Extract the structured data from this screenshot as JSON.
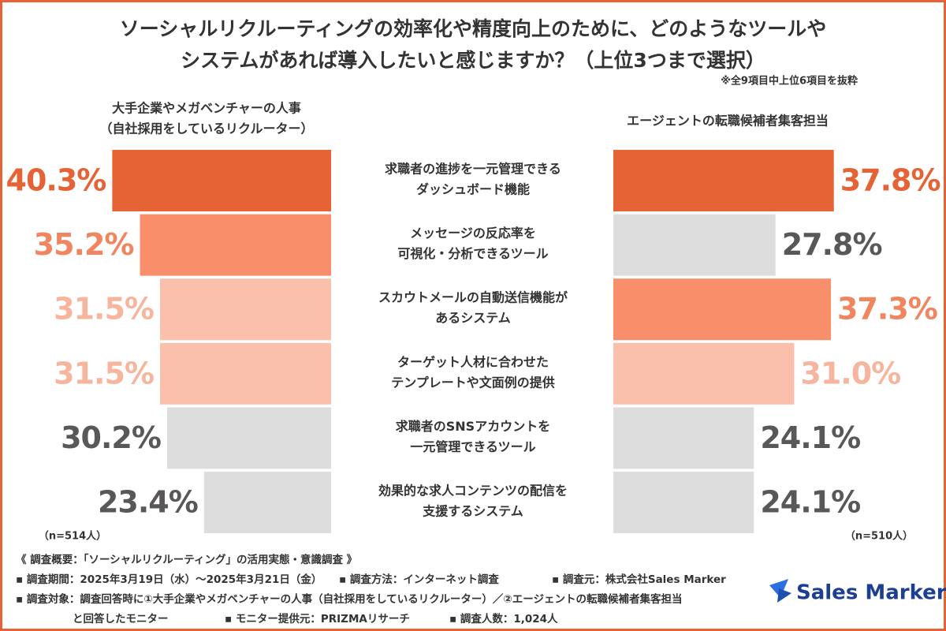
{
  "chart_data": {
    "type": "butterfly",
    "title": [
      "ソーシャルリクルーティングの効率化や精度向上のために、どのようなツールや",
      "システムがあれば導入したいと感じますか？（上位3つまで選択）"
    ],
    "note": "※全9項目中上位6項目を抜粋",
    "categories": [
      [
        "求職者の進捗を一元管理できる",
        "ダッシュボード機能"
      ],
      [
        "メッセージの反応率を",
        "可視化・分析できるツール"
      ],
      [
        "スカウトメールの自動送信機能が",
        "あるシステム"
      ],
      [
        "ターゲット人材に合わせた",
        "テンプレートや文面例の提供"
      ],
      [
        "求職者のSNSアカウントを",
        "一元管理できるツール"
      ],
      [
        "効果的な求人コンテンツの配信を",
        "支援するシステム"
      ]
    ],
    "xlim": [
      0,
      45
    ],
    "series": [
      {
        "name": [
          "大手企業やメガベンチャーの人事",
          "（自社採用をしているリクルーター）"
        ],
        "n_label": "（n=514人）",
        "values": [
          40.3,
          35.2,
          31.5,
          31.5,
          30.2,
          23.4
        ],
        "value_labels": [
          "40.3%",
          "35.2%",
          "31.5%",
          "31.5%",
          "30.2%",
          "23.4%"
        ],
        "colors": [
          "#e66335",
          "#f88e6a",
          "#fbc0ab",
          "#fbc0ab",
          "#dedddd",
          "#dedddd"
        ],
        "label_colors": [
          "#e66335",
          "#f08560",
          "#f7b59d",
          "#f7b59d",
          "#595757",
          "#595757"
        ]
      },
      {
        "name": [
          "エージェントの転職候補者集客担当"
        ],
        "n_label": "（n=510人）",
        "values": [
          37.8,
          27.8,
          37.3,
          31.0,
          24.1,
          24.1
        ],
        "value_labels": [
          "37.8%",
          "27.8%",
          "37.3%",
          "31.0%",
          "24.1%",
          "24.1%"
        ],
        "colors": [
          "#e66335",
          "#dedddd",
          "#f88e6a",
          "#fbc0ab",
          "#dedddd",
          "#dedddd"
        ],
        "label_colors": [
          "#e66335",
          "#595757",
          "#f08560",
          "#f7b59d",
          "#595757",
          "#595757"
        ]
      }
    ]
  },
  "footer": {
    "rows": [
      [
        "《 調査概要：「ソーシャルリクルーティング」の活用実態・意識調査 》"
      ],
      [
        "▪ 調査期間：2025年3月19日（水）～2025年3月21日（金）",
        "▪ 調査方法：インターネット調査",
        "▪ 調査元：株式会社Sales Marker"
      ],
      [
        "▪ 調査対象：調査回答時に①大手企業やメガベンチャーの人事（自社採用をしているリクルーター）／②エージェントの転職候補者集客担当"
      ],
      [
        "と回答したモニター",
        "▪ モニター提供元：PRIZMAリサーチ",
        "▪ 調査人数：1,024人"
      ]
    ]
  },
  "logo": "Sales Marker"
}
